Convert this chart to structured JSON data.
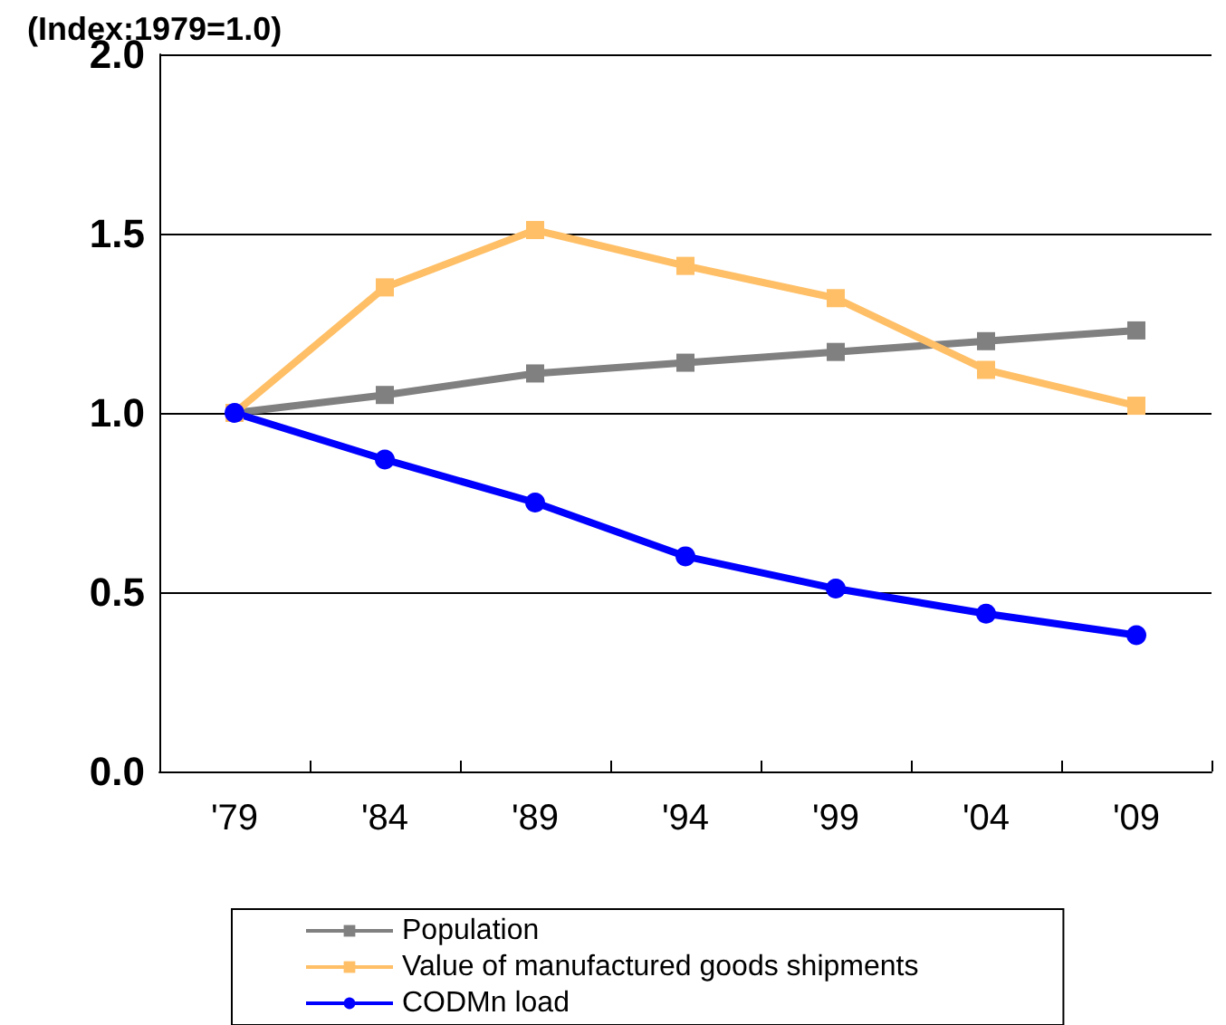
{
  "chart_data": {
    "type": "line",
    "ylabel": "(Index:1979=1.0)",
    "categories": [
      "'79",
      "'84",
      "'89",
      "'94",
      "'99",
      "'04",
      "'09"
    ],
    "series": [
      {
        "name": "Population",
        "color": "#808080",
        "marker": "square",
        "values": [
          1.0,
          1.05,
          1.11,
          1.14,
          1.17,
          1.2,
          1.23
        ]
      },
      {
        "name": "Value of manufactured goods shipments",
        "color": "#ffbf66",
        "marker": "square",
        "values": [
          1.0,
          1.35,
          1.51,
          1.41,
          1.32,
          1.12,
          1.02
        ]
      },
      {
        "name": "CODMn load",
        "color": "#0000ff",
        "marker": "circle",
        "values": [
          1.0,
          0.87,
          0.75,
          0.6,
          0.51,
          0.44,
          0.38
        ]
      }
    ],
    "ylim": [
      0,
      2
    ],
    "yticks": [
      {
        "value": 0,
        "label": "0.0"
      },
      {
        "value": 0.5,
        "label": "0.5"
      },
      {
        "value": 1,
        "label": "1.0"
      },
      {
        "value": 1.5,
        "label": "1.5"
      },
      {
        "value": 2,
        "label": "2.0"
      }
    ],
    "grid": "y",
    "legend": "bottom"
  }
}
